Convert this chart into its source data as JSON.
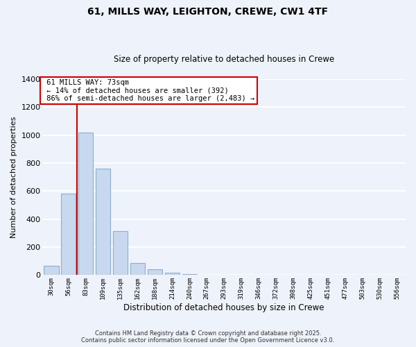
{
  "title": "61, MILLS WAY, LEIGHTON, CREWE, CW1 4TF",
  "subtitle": "Size of property relative to detached houses in Crewe",
  "xlabel": "Distribution of detached houses by size in Crewe",
  "ylabel": "Number of detached properties",
  "bar_color": "#c8d8ee",
  "bar_edge_color": "#8ab0cc",
  "background_color": "#eef2fa",
  "grid_color": "white",
  "bins": [
    "30sqm",
    "56sqm",
    "83sqm",
    "109sqm",
    "135sqm",
    "162sqm",
    "188sqm",
    "214sqm",
    "240sqm",
    "267sqm",
    "293sqm",
    "319sqm",
    "346sqm",
    "372sqm",
    "398sqm",
    "425sqm",
    "451sqm",
    "477sqm",
    "503sqm",
    "530sqm",
    "556sqm"
  ],
  "values": [
    65,
    580,
    1020,
    760,
    315,
    88,
    40,
    18,
    5,
    0,
    0,
    0,
    0,
    0,
    0,
    0,
    0,
    0,
    0,
    0,
    0
  ],
  "ylim": [
    0,
    1400
  ],
  "yticks": [
    0,
    200,
    400,
    600,
    800,
    1000,
    1200,
    1400
  ],
  "property_label": "61 MILLS WAY: 73sqm",
  "smaller_pct": 14,
  "smaller_count": 392,
  "larger_pct": 86,
  "larger_count": 2483,
  "vline_x": 1.5,
  "footer1": "Contains HM Land Registry data © Crown copyright and database right 2025.",
  "footer2": "Contains public sector information licensed under the Open Government Licence v3.0."
}
